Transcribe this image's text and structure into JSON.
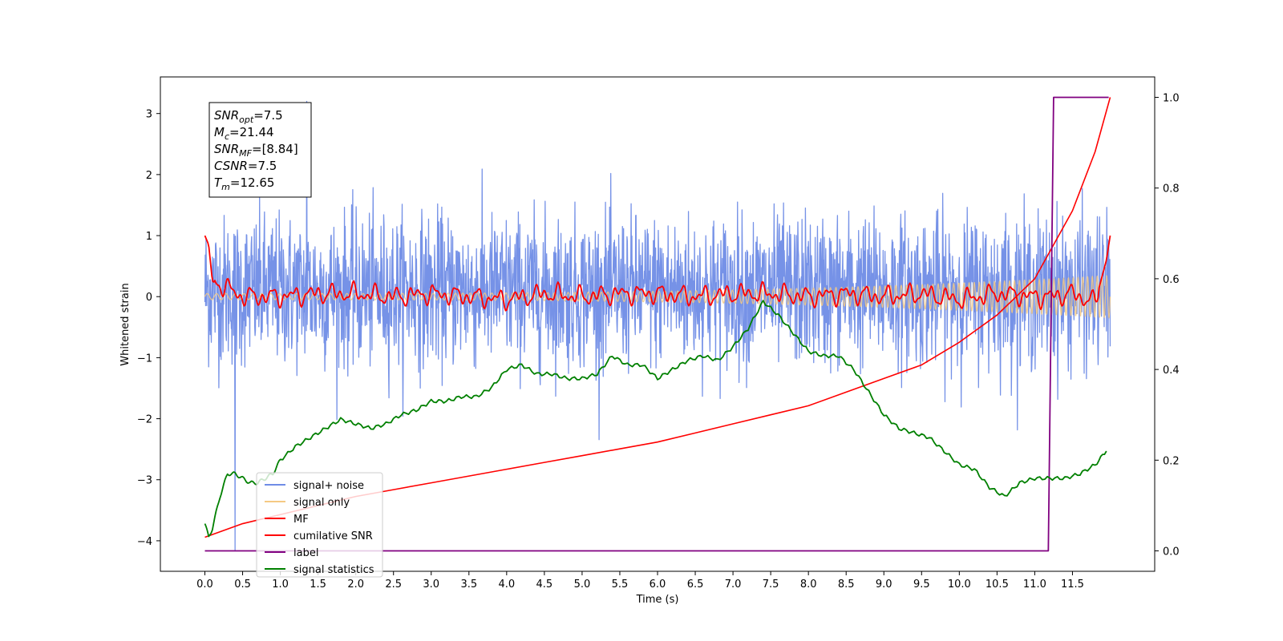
{
  "chart_data": {
    "type": "line",
    "xlabel": "Time (s)",
    "ylabel": "Whitened strain",
    "xlim": [
      -0.59,
      12.59
    ],
    "ylim": [
      -4.5,
      3.6
    ],
    "y2lim": [
      -0.045,
      1.045
    ],
    "xticks": [
      0.0,
      0.5,
      1.0,
      1.5,
      2.0,
      2.5,
      3.0,
      3.5,
      4.0,
      4.5,
      5.0,
      5.5,
      6.0,
      6.5,
      7.0,
      7.5,
      8.0,
      8.5,
      9.0,
      9.5,
      10.0,
      10.5,
      11.0,
      11.5
    ],
    "xtick_labels": [
      "0.0",
      "0.5",
      "1.0",
      "1.5",
      "2.0",
      "2.5",
      "3.0",
      "3.5",
      "4.0",
      "4.5",
      "5.0",
      "5.5",
      "6.0",
      "6.5",
      "7.0",
      "7.5",
      "8.0",
      "8.5",
      "9.0",
      "9.5",
      "10.0",
      "10.5",
      "11.0",
      "11.5"
    ],
    "yticks": [
      3,
      2,
      1,
      0,
      -1,
      -2,
      -3,
      -4
    ],
    "ytick_labels": [
      "3",
      "2",
      "1",
      "0",
      "−1",
      "−2",
      "−3",
      "−4"
    ],
    "y2ticks": [
      1.0,
      0.8,
      0.6,
      0.4,
      0.2,
      0.0
    ],
    "y2tick_labels": [
      "1.0",
      "0.8",
      "0.6",
      "0.4",
      "0.2",
      "0.0"
    ],
    "info_box": [
      {
        "var": "SNR",
        "sub": "opt",
        "value": "=7.5"
      },
      {
        "var": "M",
        "sub": "c",
        "value": "=21.44"
      },
      {
        "var": "SNR",
        "sub": "MF",
        "value": "=[8.84]"
      },
      {
        "var": "CSNR",
        "sub": "",
        "value": "=7.5"
      },
      {
        "var": "T",
        "sub": "m",
        "value": "=12.65"
      }
    ],
    "series": [
      {
        "name": "signal+ noise",
        "axis": "left",
        "color": "#6f8ce6",
        "kind": "noise",
        "t_range": [
          0.0,
          12.0
        ],
        "mean": 0.1,
        "typical_min": -1.2,
        "typical_max": 1.5,
        "extreme_min": -4.15,
        "extreme_max": 3.2
      },
      {
        "name": "signal only",
        "axis": "left",
        "color": "#f5c983",
        "kind": "chirp",
        "t_range": [
          0.0,
          12.0
        ],
        "amplitude_start": 0.05,
        "amplitude_end": 0.35
      },
      {
        "name": "MF",
        "axis": "left",
        "color": "#ff0000",
        "x": [
          0.0,
          0.05,
          0.1,
          0.2,
          0.5,
          1.0,
          1.5,
          2.0,
          2.5,
          3.0,
          3.5,
          4.0,
          4.5,
          5.0,
          5.5,
          6.0,
          6.5,
          7.0,
          7.5,
          8.0,
          8.5,
          9.0,
          9.5,
          10.0,
          10.5,
          11.0,
          11.2,
          11.5,
          11.8,
          11.95,
          12.0
        ],
        "y": [
          1.0,
          0.85,
          0.25,
          0.2,
          0.0,
          0.0,
          0.05,
          0.05,
          0.0,
          0.05,
          0.0,
          -0.05,
          0.05,
          0.0,
          0.05,
          0.05,
          0.0,
          0.05,
          0.05,
          0.0,
          0.05,
          0.0,
          0.05,
          -0.05,
          0.05,
          0.0,
          0.0,
          0.05,
          -0.1,
          0.6,
          1.0
        ]
      },
      {
        "name": "cumilative SNR",
        "axis": "right",
        "color": "#ff0000",
        "x": [
          0.0,
          0.5,
          1.0,
          1.5,
          2.0,
          2.5,
          3.0,
          3.5,
          4.0,
          4.5,
          5.0,
          5.5,
          6.0,
          6.5,
          7.0,
          7.5,
          8.0,
          8.5,
          9.0,
          9.5,
          10.0,
          10.5,
          11.0,
          11.5,
          11.8,
          12.0
        ],
        "y": [
          0.03,
          0.06,
          0.08,
          0.1,
          0.12,
          0.135,
          0.15,
          0.165,
          0.18,
          0.195,
          0.21,
          0.225,
          0.24,
          0.26,
          0.28,
          0.3,
          0.32,
          0.35,
          0.38,
          0.41,
          0.46,
          0.52,
          0.6,
          0.75,
          0.88,
          1.0
        ]
      },
      {
        "name": "label",
        "axis": "right",
        "color": "#800080",
        "x": [
          0.0,
          11.18,
          11.25,
          11.98
        ],
        "y": [
          0.0,
          0.0,
          1.0,
          1.0
        ]
      },
      {
        "name": "signal statistics",
        "axis": "right",
        "color": "#008000",
        "x": [
          0.0,
          0.05,
          0.1,
          0.2,
          0.3,
          0.4,
          0.5,
          0.6,
          0.7,
          0.8,
          0.9,
          1.0,
          1.2,
          1.4,
          1.6,
          1.8,
          2.0,
          2.2,
          2.4,
          2.6,
          2.8,
          3.0,
          3.2,
          3.4,
          3.6,
          3.8,
          4.0,
          4.2,
          4.4,
          4.6,
          4.8,
          5.0,
          5.2,
          5.4,
          5.6,
          5.8,
          6.0,
          6.2,
          6.4,
          6.6,
          6.8,
          7.0,
          7.2,
          7.4,
          7.6,
          7.8,
          8.0,
          8.2,
          8.4,
          8.6,
          8.8,
          9.0,
          9.2,
          9.4,
          9.6,
          9.8,
          10.0,
          10.2,
          10.4,
          10.6,
          10.8,
          11.0,
          11.2,
          11.4,
          11.6,
          11.8,
          11.95
        ],
        "y": [
          0.06,
          0.03,
          0.05,
          0.12,
          0.17,
          0.17,
          0.16,
          0.15,
          0.15,
          0.16,
          0.17,
          0.2,
          0.23,
          0.25,
          0.27,
          0.29,
          0.28,
          0.27,
          0.28,
          0.3,
          0.31,
          0.33,
          0.33,
          0.34,
          0.34,
          0.36,
          0.4,
          0.41,
          0.39,
          0.39,
          0.38,
          0.38,
          0.39,
          0.43,
          0.41,
          0.41,
          0.38,
          0.4,
          0.42,
          0.43,
          0.42,
          0.45,
          0.49,
          0.55,
          0.52,
          0.48,
          0.44,
          0.43,
          0.43,
          0.4,
          0.35,
          0.3,
          0.27,
          0.26,
          0.25,
          0.22,
          0.19,
          0.18,
          0.14,
          0.12,
          0.15,
          0.16,
          0.16,
          0.16,
          0.17,
          0.19,
          0.22
        ]
      }
    ],
    "legend_position": "lower-left"
  }
}
